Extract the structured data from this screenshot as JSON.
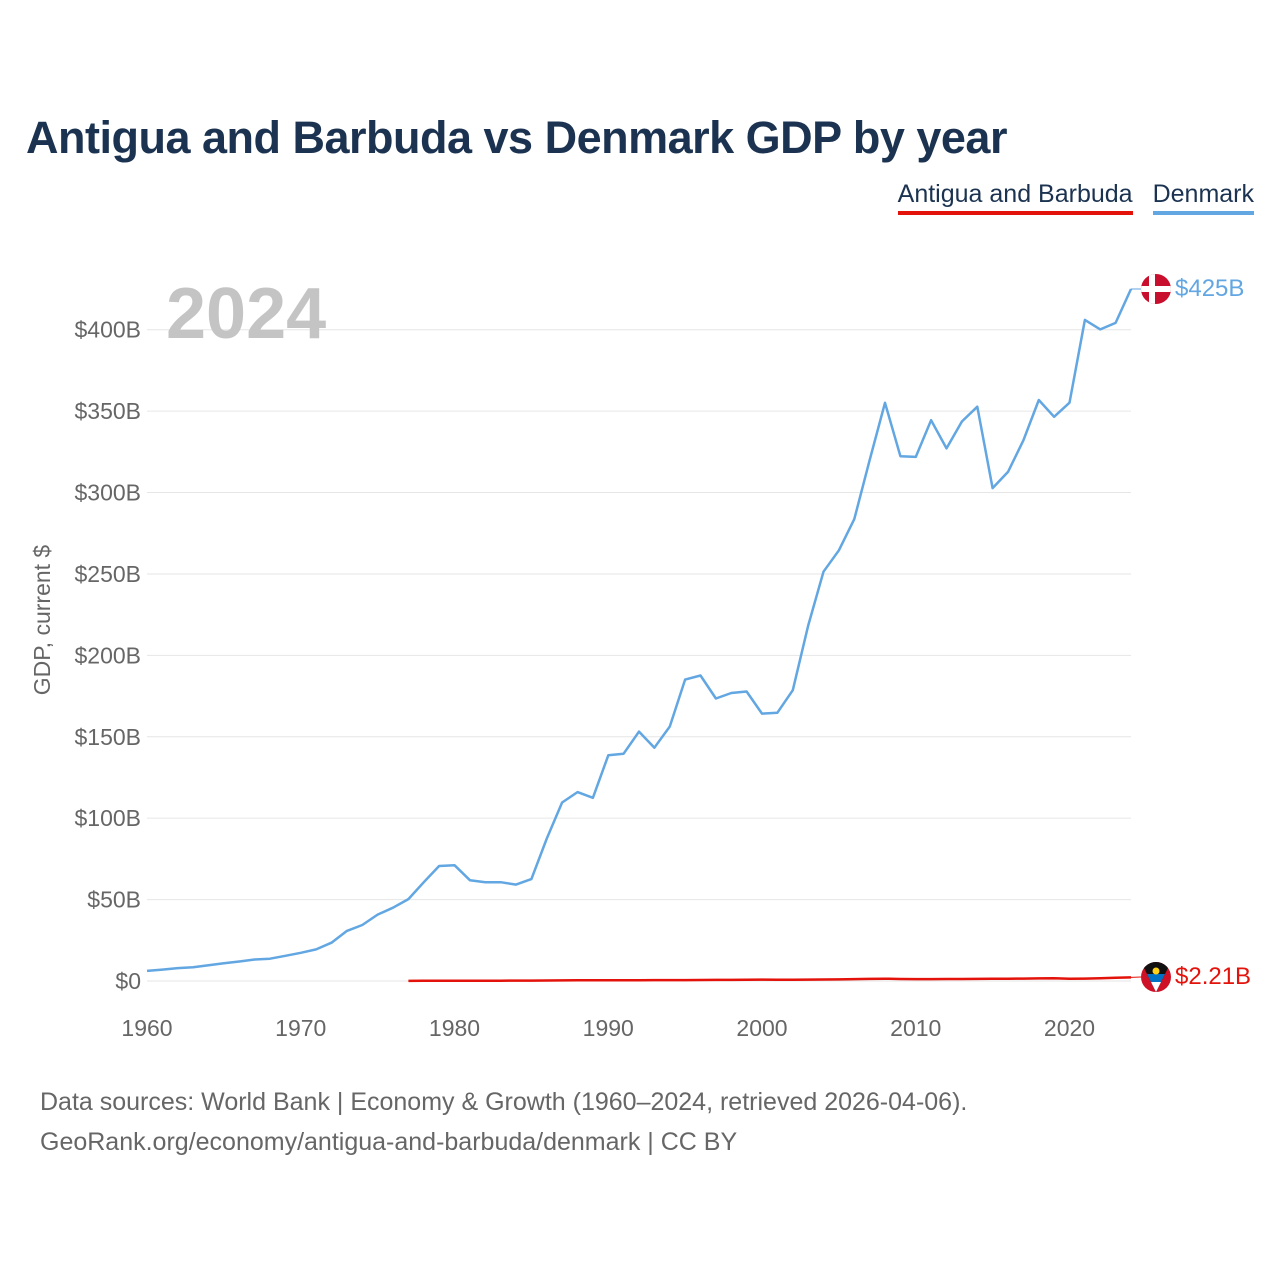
{
  "header": {
    "title": "Antigua and Barbuda vs Denmark GDP by year"
  },
  "legend": {
    "items": [
      "Antigua and Barbuda",
      "Denmark"
    ]
  },
  "footer": {
    "line1": "Data sources: World Bank | Economy & Growth (1960–2024, retrieved 2026-04-06).",
    "line2": "GeoRank.org/economy/antigua-and-barbuda/denmark | CC BY"
  },
  "colors": {
    "antigua": "#e3120b",
    "denmark": "#62a6e2",
    "title": "#1b3350",
    "grid": "#e6e6e6",
    "axis_text": "#666666",
    "year_watermark": "#c4c4c4"
  },
  "chart_data": {
    "type": "line",
    "title": "Antigua and Barbuda vs Denmark GDP by year",
    "xlabel": "",
    "ylabel": "GDP, current $",
    "year_label": "2024",
    "xlim": [
      1960,
      2024
    ],
    "ylim": [
      0,
      425
    ],
    "x_ticks": [
      1960,
      1970,
      1980,
      1990,
      2000,
      2010,
      2020
    ],
    "x_tick_labels": [
      "1960",
      "1970",
      "1980",
      "1990",
      "2000",
      "2010",
      "2020"
    ],
    "y_ticks": [
      0,
      50,
      100,
      150,
      200,
      250,
      300,
      350,
      400
    ],
    "y_tick_labels": [
      "$0",
      "$50B",
      "$100B",
      "$150B",
      "$200B",
      "$250B",
      "$300B",
      "$350B",
      "$400B"
    ],
    "units": "billions of current US$",
    "grid": true,
    "legend_position": "top-right",
    "series": [
      {
        "name": "Antigua and Barbuda",
        "color": "#e3120b",
        "end_label": "$2.21B",
        "flag": "antigua-and-barbuda-flag-icon",
        "x": [
          1977,
          1978,
          1979,
          1980,
          1981,
          1982,
          1983,
          1984,
          1985,
          1986,
          1987,
          1988,
          1989,
          1990,
          1991,
          1992,
          1993,
          1994,
          1995,
          1996,
          1997,
          1998,
          1999,
          2000,
          2001,
          2002,
          2003,
          2004,
          2005,
          2006,
          2007,
          2008,
          2009,
          2010,
          2011,
          2012,
          2013,
          2014,
          2015,
          2016,
          2017,
          2018,
          2019,
          2020,
          2021,
          2022,
          2023,
          2024
        ],
        "values": [
          0.08,
          0.1,
          0.12,
          0.14,
          0.16,
          0.18,
          0.19,
          0.22,
          0.25,
          0.3,
          0.35,
          0.4,
          0.45,
          0.46,
          0.48,
          0.5,
          0.53,
          0.57,
          0.58,
          0.62,
          0.66,
          0.7,
          0.74,
          0.83,
          0.8,
          0.81,
          0.85,
          0.92,
          1.0,
          1.15,
          1.32,
          1.4,
          1.22,
          1.15,
          1.14,
          1.21,
          1.2,
          1.27,
          1.36,
          1.44,
          1.47,
          1.6,
          1.66,
          1.4,
          1.47,
          1.75,
          2.02,
          2.21
        ]
      },
      {
        "name": "Denmark",
        "color": "#62a6e2",
        "end_label": "$425B",
        "flag": "denmark-flag-icon",
        "x": [
          1960,
          1961,
          1962,
          1963,
          1964,
          1965,
          1966,
          1967,
          1968,
          1969,
          1970,
          1971,
          1972,
          1973,
          1974,
          1975,
          1976,
          1977,
          1978,
          1979,
          1980,
          1981,
          1982,
          1983,
          1984,
          1985,
          1986,
          1987,
          1988,
          1989,
          1990,
          1991,
          1992,
          1993,
          1994,
          1995,
          1996,
          1997,
          1998,
          1999,
          2000,
          2001,
          2002,
          2003,
          2004,
          2005,
          2006,
          2007,
          2008,
          2009,
          2010,
          2011,
          2012,
          2013,
          2014,
          2015,
          2016,
          2017,
          2018,
          2019,
          2020,
          2021,
          2022,
          2023,
          2024
        ],
        "values": [
          6.2,
          7.0,
          7.9,
          8.5,
          9.7,
          10.9,
          12.0,
          13.2,
          13.7,
          15.5,
          17.3,
          19.4,
          23.5,
          30.8,
          34.4,
          40.8,
          45.0,
          50.3,
          60.7,
          70.6,
          71.1,
          61.9,
          60.6,
          60.7,
          59.2,
          62.6,
          87.5,
          109.6,
          116.0,
          112.5,
          138.6,
          139.6,
          153.2,
          143.3,
          156.3,
          185.1,
          187.6,
          173.5,
          176.9,
          177.8,
          164.2,
          164.8,
          178.6,
          218.1,
          251.4,
          264.5,
          283.7,
          319.8,
          355.1,
          322.3,
          321.9,
          344.4,
          327.1,
          343.6,
          352.7,
          302.7,
          312.7,
          332.1,
          356.8,
          346.5,
          355.2,
          406.0,
          400.2,
          404.2,
          425.0
        ]
      }
    ]
  }
}
